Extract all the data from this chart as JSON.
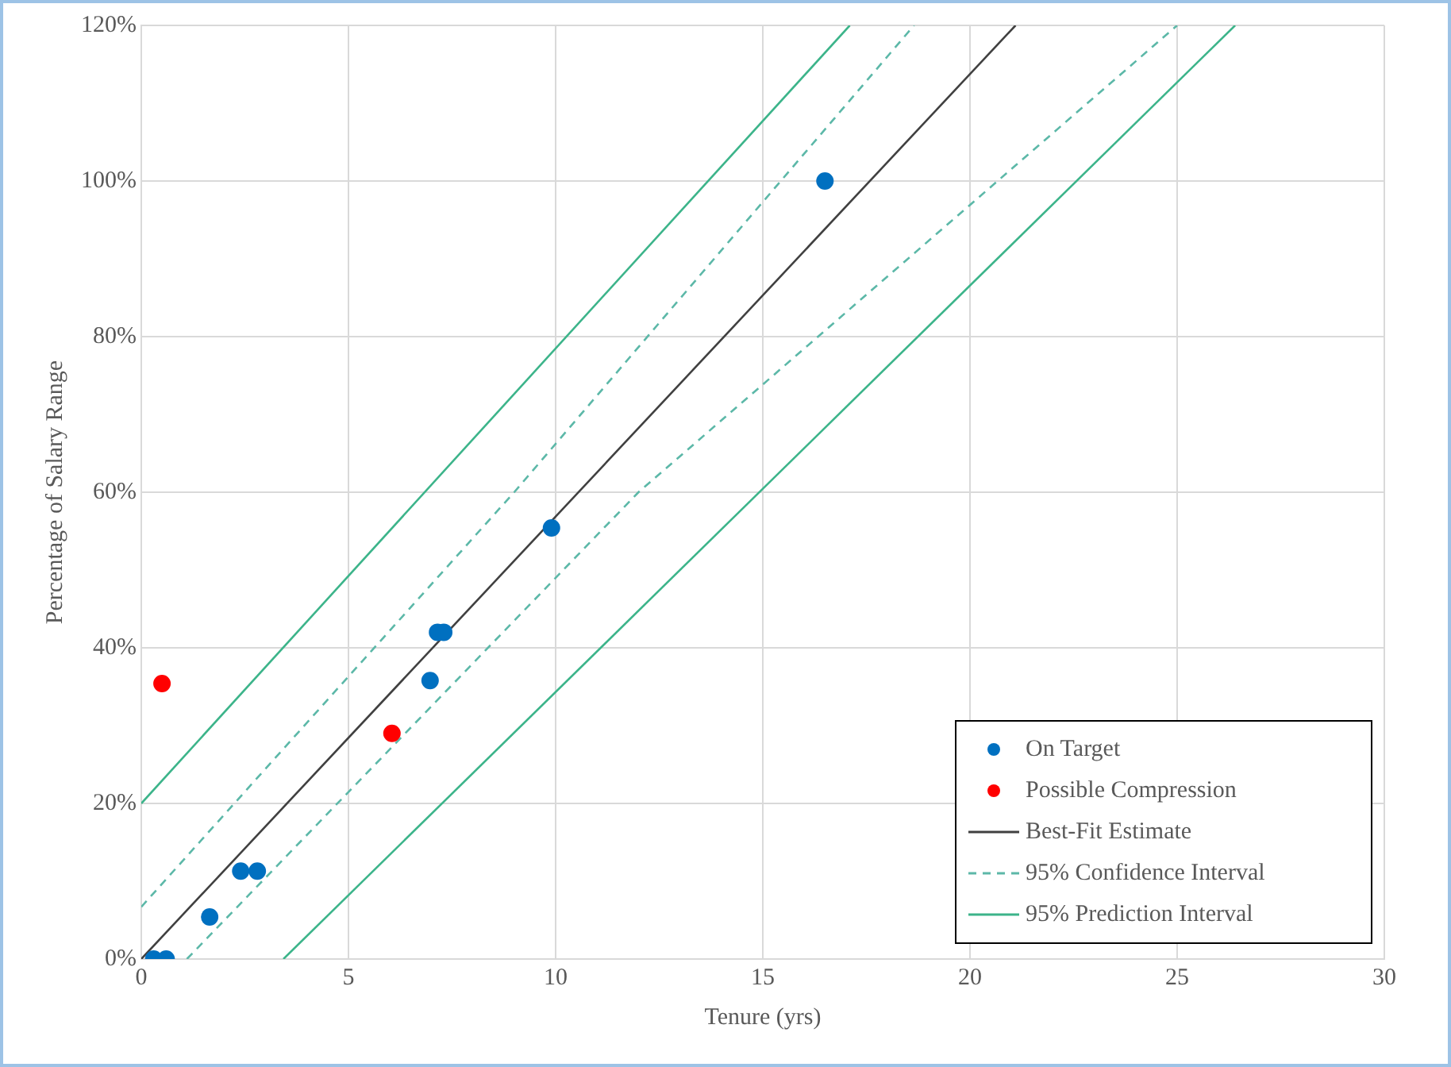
{
  "chart_data": {
    "type": "scatter",
    "xlabel": "Tenure (yrs)",
    "ylabel": "Percentage of Salary Range",
    "xlim": [
      0,
      30
    ],
    "xticks": [
      0,
      5,
      10,
      15,
      20,
      25,
      30
    ],
    "ylim": [
      0,
      120
    ],
    "yticks": [
      {
        "value": 0,
        "label": "0%"
      },
      {
        "value": 20,
        "label": "20%"
      },
      {
        "value": 40,
        "label": "40%"
      },
      {
        "value": 60,
        "label": "60%"
      },
      {
        "value": 80,
        "label": "80%"
      },
      {
        "value": 100,
        "label": "100%"
      },
      {
        "value": 120,
        "label": "120%"
      }
    ],
    "grid": true,
    "legend": "bottom right",
    "series": [
      {
        "name": "On Target",
        "type": "scatter",
        "marker": "circle",
        "color": "#0070c0",
        "x": [
          0.3,
          0.6,
          1.65,
          2.4,
          2.8,
          6.97,
          7.15,
          7.3,
          9.9,
          16.5
        ],
        "values": [
          0,
          0,
          5.4,
          11.3,
          11.3,
          35.8,
          42,
          42,
          55.4,
          100
        ]
      },
      {
        "name": "Possible Compression",
        "type": "scatter",
        "marker": "circle",
        "color": "#ff0000",
        "x": [
          0.5,
          6.05
        ],
        "values": [
          35.4,
          29
        ]
      },
      {
        "name": "Best-Fit Estimate",
        "type": "line",
        "marker": "none",
        "line_style": "solid",
        "color": "#404040",
        "x": [
          0,
          21.1
        ],
        "values": [
          0,
          120
        ]
      },
      {
        "name": "95% Confidence Interval",
        "type": "line",
        "marker": "none",
        "line_style": "dashed",
        "color": "#5cb8a8",
        "x": [
          0,
          9,
          18.65
        ],
        "values": [
          6.7,
          60,
          120
        ]
      },
      {
        "type": "line",
        "marker": "none",
        "line_style": "dashed",
        "color": "#5cb8a8",
        "x": [
          1.1,
          12,
          25
        ],
        "values": [
          0,
          60,
          120
        ]
      },
      {
        "name": "95% Prediction Interval",
        "type": "line",
        "marker": "none",
        "line_style": "solid",
        "color": "#3cb48a",
        "x": [
          0,
          17.1
        ],
        "values": [
          20,
          120
        ]
      },
      {
        "type": "line",
        "marker": "none",
        "line_style": "solid",
        "color": "#3cb48a",
        "x": [
          3.43,
          26.4
        ],
        "values": [
          0,
          120
        ]
      }
    ]
  }
}
